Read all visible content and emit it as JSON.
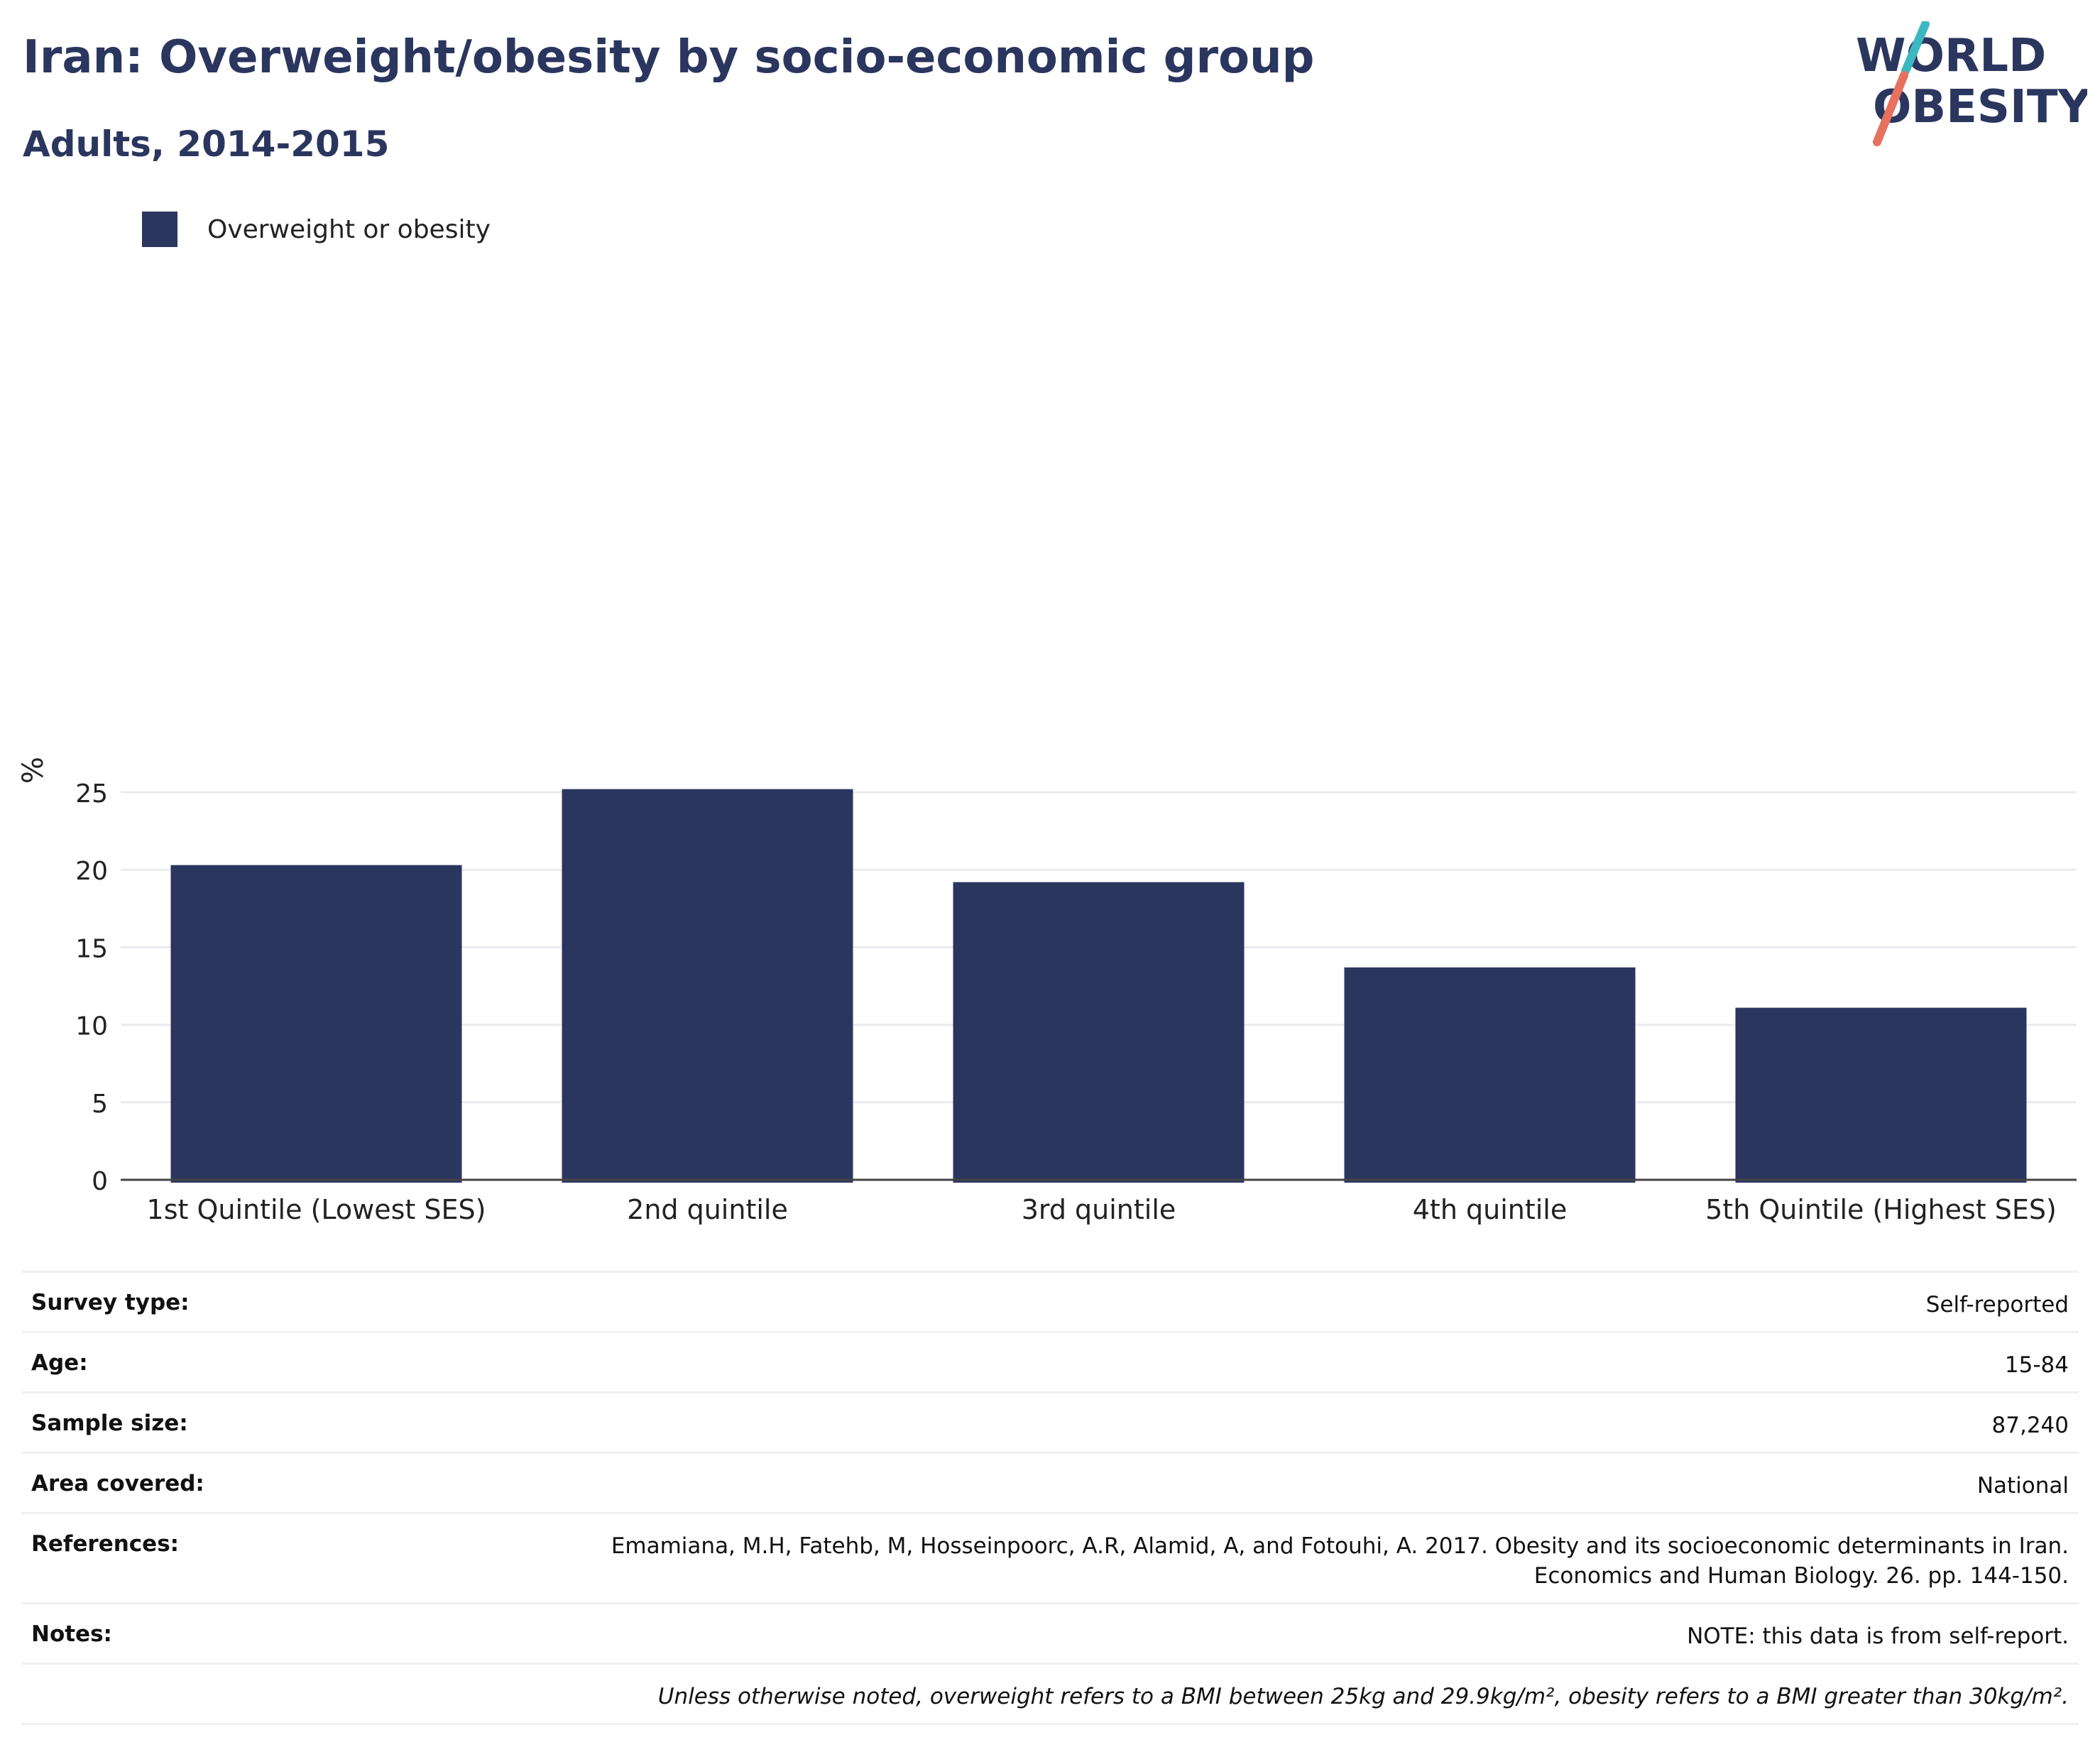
{
  "header": {
    "title": "Iran: Overweight/obesity by socio-economic group",
    "subtitle": "Adults, 2014-2015"
  },
  "logo": {
    "line1": "WORLD",
    "line2": "OBESITY",
    "accent_teal": "#3bb8c0",
    "accent_coral": "#e8705f"
  },
  "legend": {
    "label": "Overweight or obesity",
    "color": "#2b365f"
  },
  "chart_data": {
    "type": "bar",
    "categories": [
      "1st Quintile (Lowest SES)",
      "2nd quintile",
      "3rd quintile",
      "4th quintile",
      "5th Quintile (Highest SES)"
    ],
    "series": [
      {
        "name": "Overweight or obesity",
        "values": [
          20.3,
          25.2,
          19.2,
          13.7,
          11.1
        ],
        "color": "#2b365f"
      }
    ],
    "title": "",
    "xlabel": "",
    "ylabel": "%",
    "ylim": [
      0,
      27
    ],
    "yticks": [
      0,
      5,
      10,
      15,
      20,
      25
    ],
    "grid": true,
    "legend_position": "top-left"
  },
  "info": {
    "survey_type_label": "Survey type:",
    "survey_type_value": "Self-reported",
    "age_label": "Age:",
    "age_value": "15-84",
    "sample_label": "Sample size:",
    "sample_value": "87,240",
    "area_label": "Area covered:",
    "area_value": "National",
    "references_label": "References:",
    "references_line1": "Emamiana, M.H, Fatehb, M, Hosseinpoorc, A.R, Alamid, A, and Fotouhi, A. 2017. Obesity and its socioeconomic determinants in Iran.",
    "references_line2": "Economics and Human Biology. 26. pp. 144-150.",
    "notes_label": "Notes:",
    "notes_value": "NOTE: this data is from self-report.",
    "definition": "Unless otherwise noted, overweight refers to a BMI between 25kg and 29.9kg/m², obesity refers to a BMI greater than 30kg/m²."
  }
}
